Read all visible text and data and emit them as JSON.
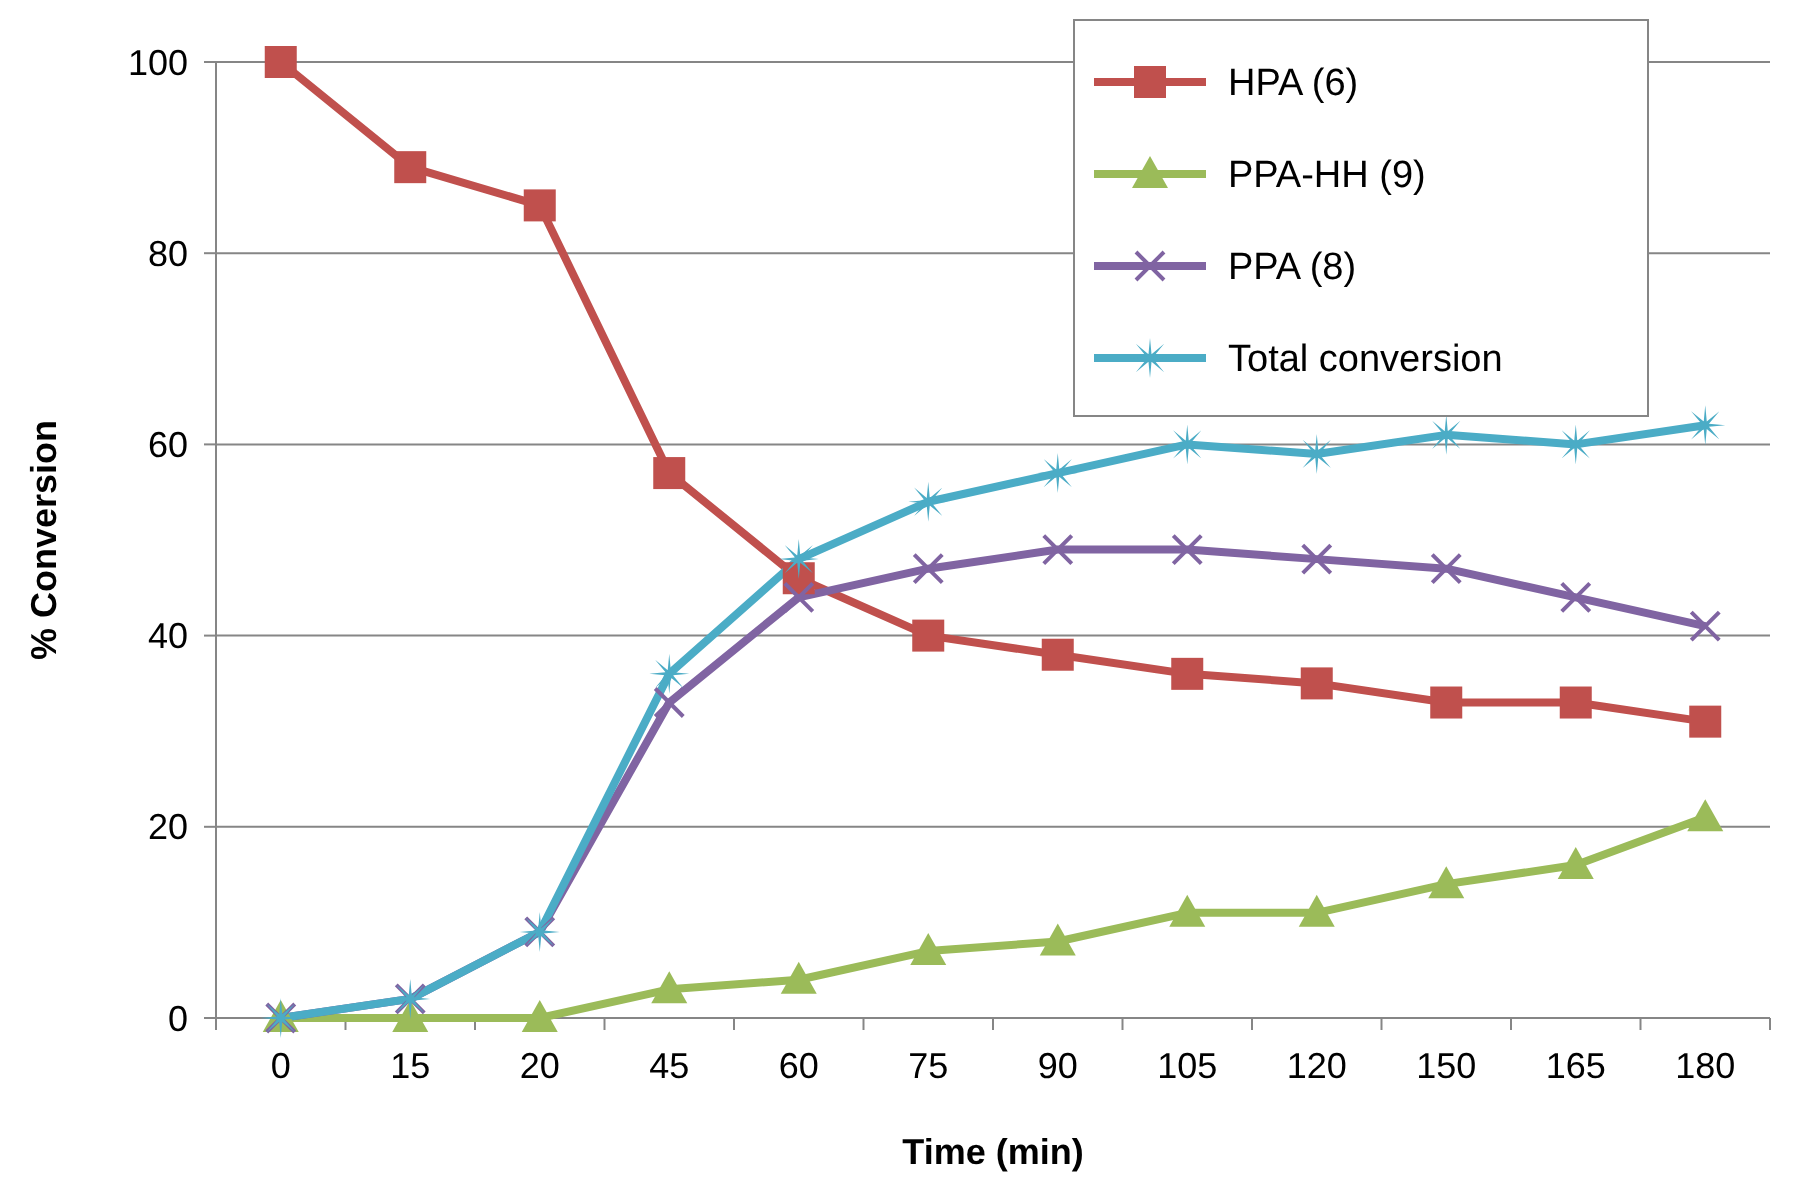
{
  "chart_data": {
    "type": "line",
    "xlabel": "Time (min)",
    "ylabel": "% Conversion",
    "categories": [
      "0",
      "15",
      "20",
      "45",
      "60",
      "75",
      "90",
      "105",
      "120",
      "150",
      "165",
      "180"
    ],
    "ylim": [
      0,
      100
    ],
    "yticks": [
      0,
      20,
      40,
      60,
      80,
      100
    ],
    "grid": "y",
    "legend": "top right",
    "series": [
      {
        "name": "HPA (6)",
        "color": "#c0504d",
        "marker": "square",
        "values": [
          100,
          89,
          85,
          57,
          46,
          40,
          38,
          36,
          35,
          33,
          33,
          31
        ]
      },
      {
        "name": "PPA-HH (9)",
        "color": "#9bbb59",
        "marker": "triangle",
        "values": [
          0,
          0,
          0,
          3,
          4,
          7,
          8,
          11,
          11,
          14,
          16,
          21
        ]
      },
      {
        "name": "PPA (8)",
        "color": "#8064a2",
        "marker": "cross",
        "values": [
          0,
          2,
          9,
          33,
          44,
          47,
          49,
          49,
          48,
          47,
          44,
          41
        ]
      },
      {
        "name": "Total conversion",
        "color": "#4bacc6",
        "marker": "star",
        "values": [
          0,
          2,
          9,
          36,
          48,
          54,
          57,
          60,
          59,
          61,
          60,
          62
        ]
      }
    ]
  }
}
